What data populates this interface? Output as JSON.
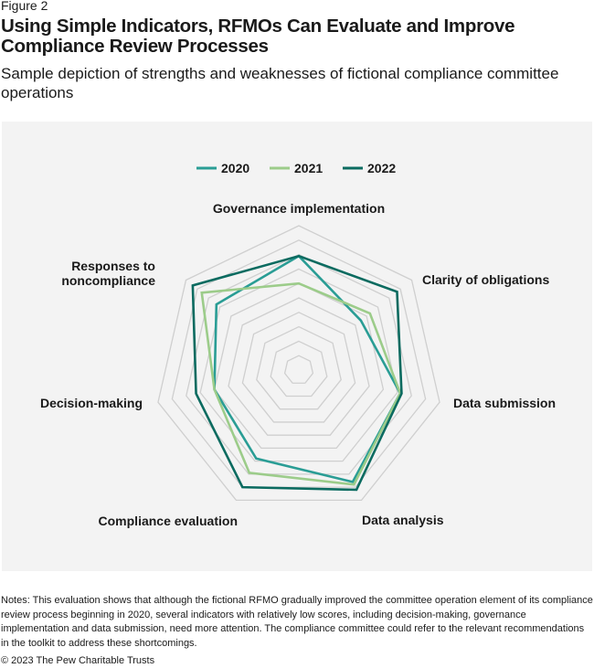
{
  "figure_label": "Figure 2",
  "title": "Using Simple Indicators, RFMOs Can Evaluate and Improve Compliance Review Processes",
  "subtitle": "Sample depiction of strengths and weaknesses of fictional compliance committee operations",
  "chart_data": {
    "type": "radar",
    "categories": [
      "Governance implementation",
      "Clarity of obligations",
      "Data submission",
      "Data analysis",
      "Compliance evaluation",
      "Decision-making",
      "Responses to noncompliance"
    ],
    "rlim": [
      0,
      10
    ],
    "rings": 10,
    "legend_position": "top",
    "series": [
      {
        "name": "2020",
        "color": "#2a9d95",
        "values": [
          7.9,
          5.5,
          7.2,
          8.6,
          6.8,
          6.0,
          7.3
        ]
      },
      {
        "name": "2021",
        "color": "#9ccc8a",
        "values": [
          6.0,
          6.3,
          7.2,
          8.8,
          7.9,
          6.0,
          8.6
        ]
      },
      {
        "name": "2022",
        "color": "#0b6b60",
        "values": [
          7.9,
          8.7,
          7.3,
          9.2,
          9.0,
          7.3,
          9.4
        ]
      }
    ]
  },
  "notes": "Notes: This evaluation shows that although the fictional RFMO gradually improved the committee operation element of its compliance review process beginning in 2020, several indicators with relatively low scores, including decision-making, governance implementation and data submission, need more attention. The compliance committee could refer to the relevant recommendations in the toolkit to address these shortcomings.",
  "copyright": "© 2023 The Pew Charitable Trusts"
}
